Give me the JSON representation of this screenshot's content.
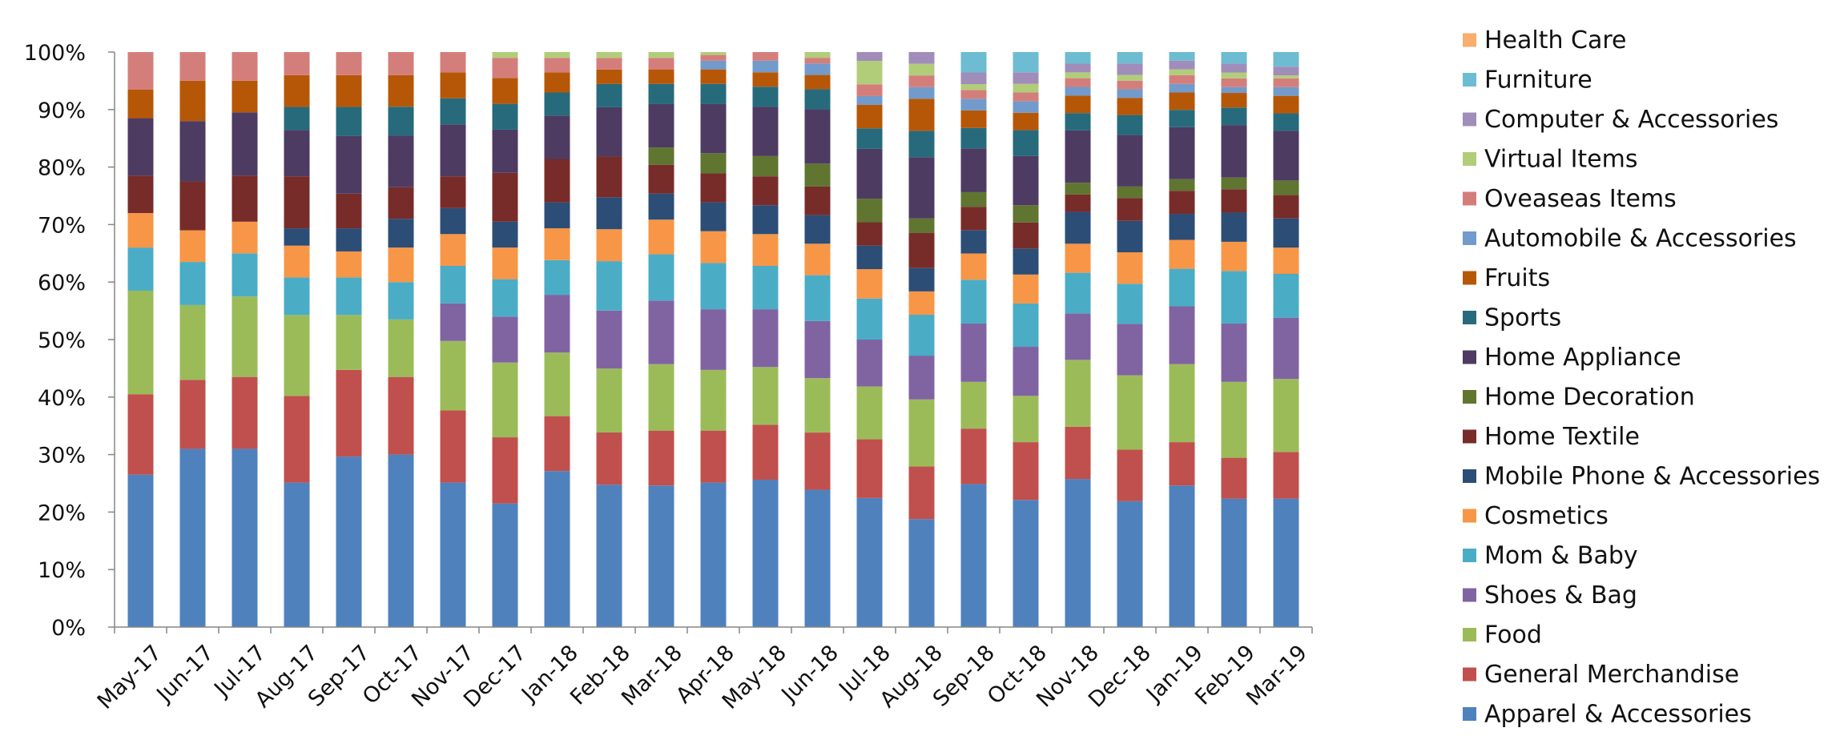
{
  "chart_data": {
    "type": "bar",
    "stacked": true,
    "percent": true,
    "categories": [
      "May-17",
      "Jun-17",
      "Jul-17",
      "Aug-17",
      "Sep-17",
      "Oct-17",
      "Nov-17",
      "Dec-17",
      "Jan-18",
      "Feb-18",
      "Mar-18",
      "Apr-18",
      "May-18",
      "Jun-18",
      "Jul-18",
      "Aug-18",
      "Sep-18",
      "Oct-18",
      "Nov-18",
      "Dec-18",
      "Jan-19",
      "Feb-19",
      "Mar-19"
    ],
    "ylim": [
      0,
      100
    ],
    "yticks": [
      "0%",
      "10%",
      "20%",
      "30%",
      "40%",
      "50%",
      "60%",
      "70%",
      "80%",
      "90%",
      "100%"
    ],
    "grid": false,
    "legend_position": "right",
    "series": [
      {
        "name": "Apparel & Accessories",
        "color": "#4F81BD",
        "values": [
          26.5,
          31,
          31,
          25,
          29.5,
          30,
          25,
          21.5,
          27,
          24.5,
          24.5,
          25,
          25.5,
          24,
          22,
          18.5,
          24.5,
          22,
          25.5,
          22,
          24.5,
          22,
          22
        ]
      },
      {
        "name": "General Merchandise",
        "color": "#C0504D",
        "values": [
          14,
          12,
          12.5,
          15,
          15,
          13.5,
          12.5,
          11.5,
          9.5,
          9,
          9.5,
          9,
          9.5,
          10,
          10,
          9,
          9.5,
          10,
          9,
          9,
          7.5,
          7,
          8
        ]
      },
      {
        "name": "Food",
        "color": "#9BBB59",
        "values": [
          18,
          13,
          14,
          14,
          9.5,
          10,
          12,
          13,
          11,
          11,
          11.5,
          10.5,
          10,
          9.5,
          9,
          11.5,
          8,
          8,
          11.5,
          13,
          13.5,
          13,
          12.5
        ]
      },
      {
        "name": "Shoes & Bag",
        "color": "#8064A2",
        "values": [
          0,
          0,
          0,
          0,
          0,
          0,
          6.5,
          8,
          10,
          10,
          11,
          10.5,
          10,
          10,
          8,
          7.5,
          10,
          8.5,
          8,
          9,
          10,
          10,
          10.5
        ]
      },
      {
        "name": "Mom & Baby",
        "color": "#4BACC6",
        "values": [
          7.5,
          7.5,
          7.5,
          6.5,
          6.5,
          6.5,
          6.5,
          6.5,
          6,
          8.5,
          8,
          8,
          7.5,
          8,
          7,
          7,
          7.5,
          7.5,
          7,
          7,
          6.5,
          9,
          7.5
        ]
      },
      {
        "name": "Cosmetics",
        "color": "#F79646",
        "values": [
          6,
          5.5,
          5.5,
          5.5,
          4.5,
          6,
          5.5,
          5.5,
          5.5,
          5.5,
          6,
          5.5,
          5.5,
          5.5,
          5,
          4,
          4.5,
          5,
          5,
          5.5,
          5,
          5,
          4.5
        ]
      },
      {
        "name": "Mobile Phone & Accessories",
        "color": "#2C4D75",
        "values": [
          0,
          0,
          0,
          3,
          4,
          5,
          4.5,
          4.5,
          4.5,
          5.5,
          4.5,
          5,
          5,
          5,
          4,
          4,
          4,
          4.5,
          5.5,
          5.5,
          4.5,
          5,
          5
        ]
      },
      {
        "name": "Home Textile",
        "color": "#772C2A",
        "values": [
          6.5,
          8.5,
          8,
          9,
          6,
          5.5,
          5.5,
          8.5,
          7.5,
          7,
          5,
          5,
          5,
          5,
          4,
          6,
          4,
          4.5,
          3,
          4,
          4,
          4,
          4
        ]
      },
      {
        "name": "Home Decoration",
        "color": "#5F7530",
        "values": [
          0,
          0,
          0,
          0,
          0,
          0,
          0,
          0,
          0,
          0,
          3,
          3.5,
          3.5,
          4,
          4,
          2.5,
          2.5,
          3,
          2,
          2,
          2,
          2,
          2.5
        ]
      },
      {
        "name": "Home Appliance",
        "color": "#4D3B62",
        "values": [
          10,
          10.5,
          11,
          8,
          10,
          9,
          9,
          7.5,
          7.5,
          8.5,
          7.5,
          8.5,
          8.5,
          9.5,
          8.5,
          10.5,
          7.5,
          8.5,
          9,
          9,
          9,
          9,
          8.5
        ]
      },
      {
        "name": "Sports",
        "color": "#276A7C",
        "values": [
          0,
          0,
          0,
          4,
          5,
          5,
          4.5,
          4.5,
          4,
          4,
          3.5,
          3.5,
          3.5,
          3.5,
          3.5,
          4.5,
          3.5,
          4.5,
          3,
          3.5,
          3,
          3,
          3
        ]
      },
      {
        "name": "Fruits",
        "color": "#B65708",
        "values": [
          5,
          7,
          5.5,
          5.5,
          5.5,
          5.5,
          4.5,
          4.5,
          3.5,
          2.5,
          2.5,
          2.5,
          2.5,
          2.5,
          4,
          5.5,
          3,
          3,
          3,
          3,
          3,
          2.5,
          3
        ]
      },
      {
        "name": "Automobile & Accessories",
        "color": "#729ACA",
        "values": [
          0,
          0,
          0,
          0,
          0,
          0,
          0,
          0,
          0,
          0,
          0,
          1.5,
          2,
          2,
          1.5,
          2,
          2,
          2,
          1.5,
          1.5,
          1.5,
          1,
          1.5
        ]
      },
      {
        "name": "Oveaseas Items",
        "color": "#D47E7B",
        "values": [
          6.5,
          5,
          5,
          4,
          4,
          4,
          3.5,
          3.5,
          2.5,
          2,
          2,
          1,
          1.5,
          1,
          2,
          2,
          1.5,
          1.5,
          1.5,
          1.5,
          1.5,
          1.5,
          1.5
        ]
      },
      {
        "name": "Virtual Items",
        "color": "#B1CD7A",
        "values": [
          0,
          0,
          0,
          0,
          0,
          0,
          0,
          1,
          1,
          1,
          1,
          0.5,
          0,
          1,
          4,
          2,
          1,
          1.5,
          1,
          1,
          1,
          1,
          0.5
        ]
      },
      {
        "name": "Computer & Accessories",
        "color": "#A08DB9",
        "values": [
          0,
          0,
          0,
          0,
          0,
          0,
          0,
          0,
          0,
          0,
          0,
          0,
          0,
          0,
          1.5,
          2,
          2,
          2,
          1.5,
          2,
          1.5,
          1.5,
          1.5
        ]
      },
      {
        "name": "Furniture",
        "color": "#6DBCD1",
        "values": [
          0,
          0,
          0,
          0,
          0,
          0,
          0,
          0,
          0,
          0,
          0,
          0,
          0,
          0,
          0,
          0,
          3.5,
          3.5,
          2,
          2,
          1.5,
          2,
          2.5
        ]
      },
      {
        "name": "Health Care",
        "color": "#F9AD6E",
        "values": [
          0,
          0,
          0,
          0,
          0,
          0,
          0,
          0,
          0,
          0,
          0,
          0,
          0,
          0,
          0,
          0,
          0,
          0,
          0,
          0,
          0,
          0,
          0
        ]
      }
    ]
  }
}
